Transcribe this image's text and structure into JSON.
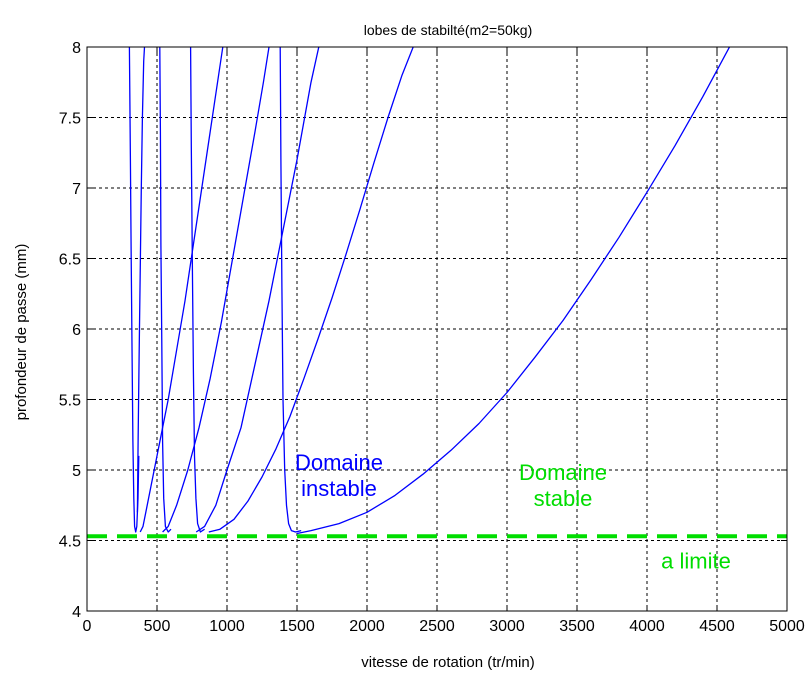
{
  "chart_data": {
    "type": "line",
    "title": "lobes de stabilté(m2=50kg)",
    "xlabel": "vitesse de rotation (tr/min)",
    "ylabel": "profondeur de passe (mm)",
    "xlim": [
      0,
      5000
    ],
    "ylim": [
      4,
      8
    ],
    "x_ticks": [
      0,
      500,
      1000,
      1500,
      2000,
      2500,
      3000,
      3500,
      4000,
      4500,
      5000
    ],
    "y_ticks": [
      4,
      4.5,
      5,
      5.5,
      6,
      6.5,
      7,
      7.5,
      8
    ],
    "x_tick_labels": [
      "0",
      "500",
      "1000",
      "1500",
      "2000",
      "2500",
      "3000",
      "3500",
      "4000",
      "4500",
      "5000"
    ],
    "y_tick_labels": [
      "4",
      "4.5",
      "5",
      "5.5",
      "6",
      "6.5",
      "7",
      "7.5",
      "8"
    ],
    "grid": true,
    "series_color": "#0000ff",
    "series": [
      {
        "x": [
          303,
          310,
          316,
          322,
          328,
          334,
          340,
          348,
          356,
          364,
          370
        ],
        "y": [
          8,
          7.2,
          6.5,
          5.8,
          5.2,
          4.8,
          4.6,
          4.56,
          4.6,
          4.8,
          5.1
        ]
      },
      {
        "x": [
          360,
          365,
          372,
          380,
          388,
          396,
          405,
          411
        ],
        "y": [
          4.7,
          5.2,
          5.8,
          6.4,
          7.0,
          7.5,
          7.9,
          8
        ]
      },
      {
        "x": [
          520,
          524,
          528,
          534,
          540,
          548,
          560,
          580,
          600
        ],
        "y": [
          8,
          7.4,
          6.6,
          5.9,
          5.2,
          4.8,
          4.6,
          4.56,
          4.58
        ]
      },
      {
        "x": [
          380,
          400,
          430,
          470,
          520,
          580,
          640,
          700,
          760,
          820,
          880,
          940,
          1000,
          1040
        ],
        "y": [
          4.56,
          4.6,
          4.75,
          4.95,
          5.2,
          5.5,
          5.85,
          6.2,
          6.6,
          7.0,
          7.4,
          7.8,
          8.2,
          8.4
        ]
      },
      {
        "x": [
          740,
          745,
          752,
          760,
          768,
          778,
          790,
          810,
          840
        ],
        "y": [
          8,
          7.3,
          6.5,
          5.7,
          5.1,
          4.8,
          4.62,
          4.56,
          4.58
        ]
      },
      {
        "x": [
          540,
          580,
          640,
          720,
          800,
          880,
          960,
          1040,
          1120,
          1200,
          1260,
          1300,
          1340
        ],
        "y": [
          4.56,
          4.6,
          4.75,
          5.0,
          5.3,
          5.65,
          6.05,
          6.5,
          6.95,
          7.4,
          7.75,
          8.0,
          8.2
        ]
      },
      {
        "x": [
          1380,
          1385,
          1392,
          1400,
          1412,
          1425,
          1440,
          1460,
          1490,
          1530
        ],
        "y": [
          8,
          7.2,
          6.3,
          5.5,
          5.0,
          4.75,
          4.62,
          4.57,
          4.56,
          4.57
        ]
      },
      {
        "x": [
          780,
          840,
          920,
          1000,
          1100,
          1200,
          1300,
          1400,
          1500,
          1600,
          1700
        ],
        "y": [
          4.56,
          4.6,
          4.75,
          5.0,
          5.3,
          5.75,
          6.2,
          6.7,
          7.2,
          7.75,
          8.2
        ]
      },
      {
        "x": [
          870,
          950,
          1050,
          1150,
          1250,
          1350,
          1450,
          1550,
          1650,
          1750,
          1850,
          1950,
          2050,
          2150,
          2250,
          2350,
          2450,
          2500
        ],
        "y": [
          4.56,
          4.58,
          4.65,
          4.78,
          4.95,
          5.15,
          5.38,
          5.65,
          5.93,
          6.22,
          6.53,
          6.85,
          7.18,
          7.5,
          7.8,
          8.05,
          8.2,
          8.3
        ]
      },
      {
        "x": [
          1500,
          1600,
          1800,
          2000,
          2200,
          2400,
          2600,
          2800,
          3000,
          3200,
          3400,
          3600,
          3800,
          4000,
          4200,
          4400,
          4600
        ],
        "y": [
          4.55,
          4.57,
          4.62,
          4.7,
          4.82,
          4.97,
          5.14,
          5.33,
          5.55,
          5.8,
          6.06,
          6.35,
          6.65,
          6.97,
          7.3,
          7.65,
          8.02
        ]
      }
    ],
    "limit_line": {
      "y": 4.53,
      "color": "#00dd00"
    },
    "annotations": [
      {
        "lines": [
          "Domaine",
          "instable"
        ],
        "x": 1800,
        "y": 5.0,
        "color": "#0000ff"
      },
      {
        "lines": [
          "Domaine",
          "stable"
        ],
        "x": 3400,
        "y": 4.93,
        "color": "#00dd00"
      },
      {
        "lines": [
          "a limite"
        ],
        "x": 4350,
        "y": 4.3,
        "color": "#00dd00"
      }
    ]
  }
}
